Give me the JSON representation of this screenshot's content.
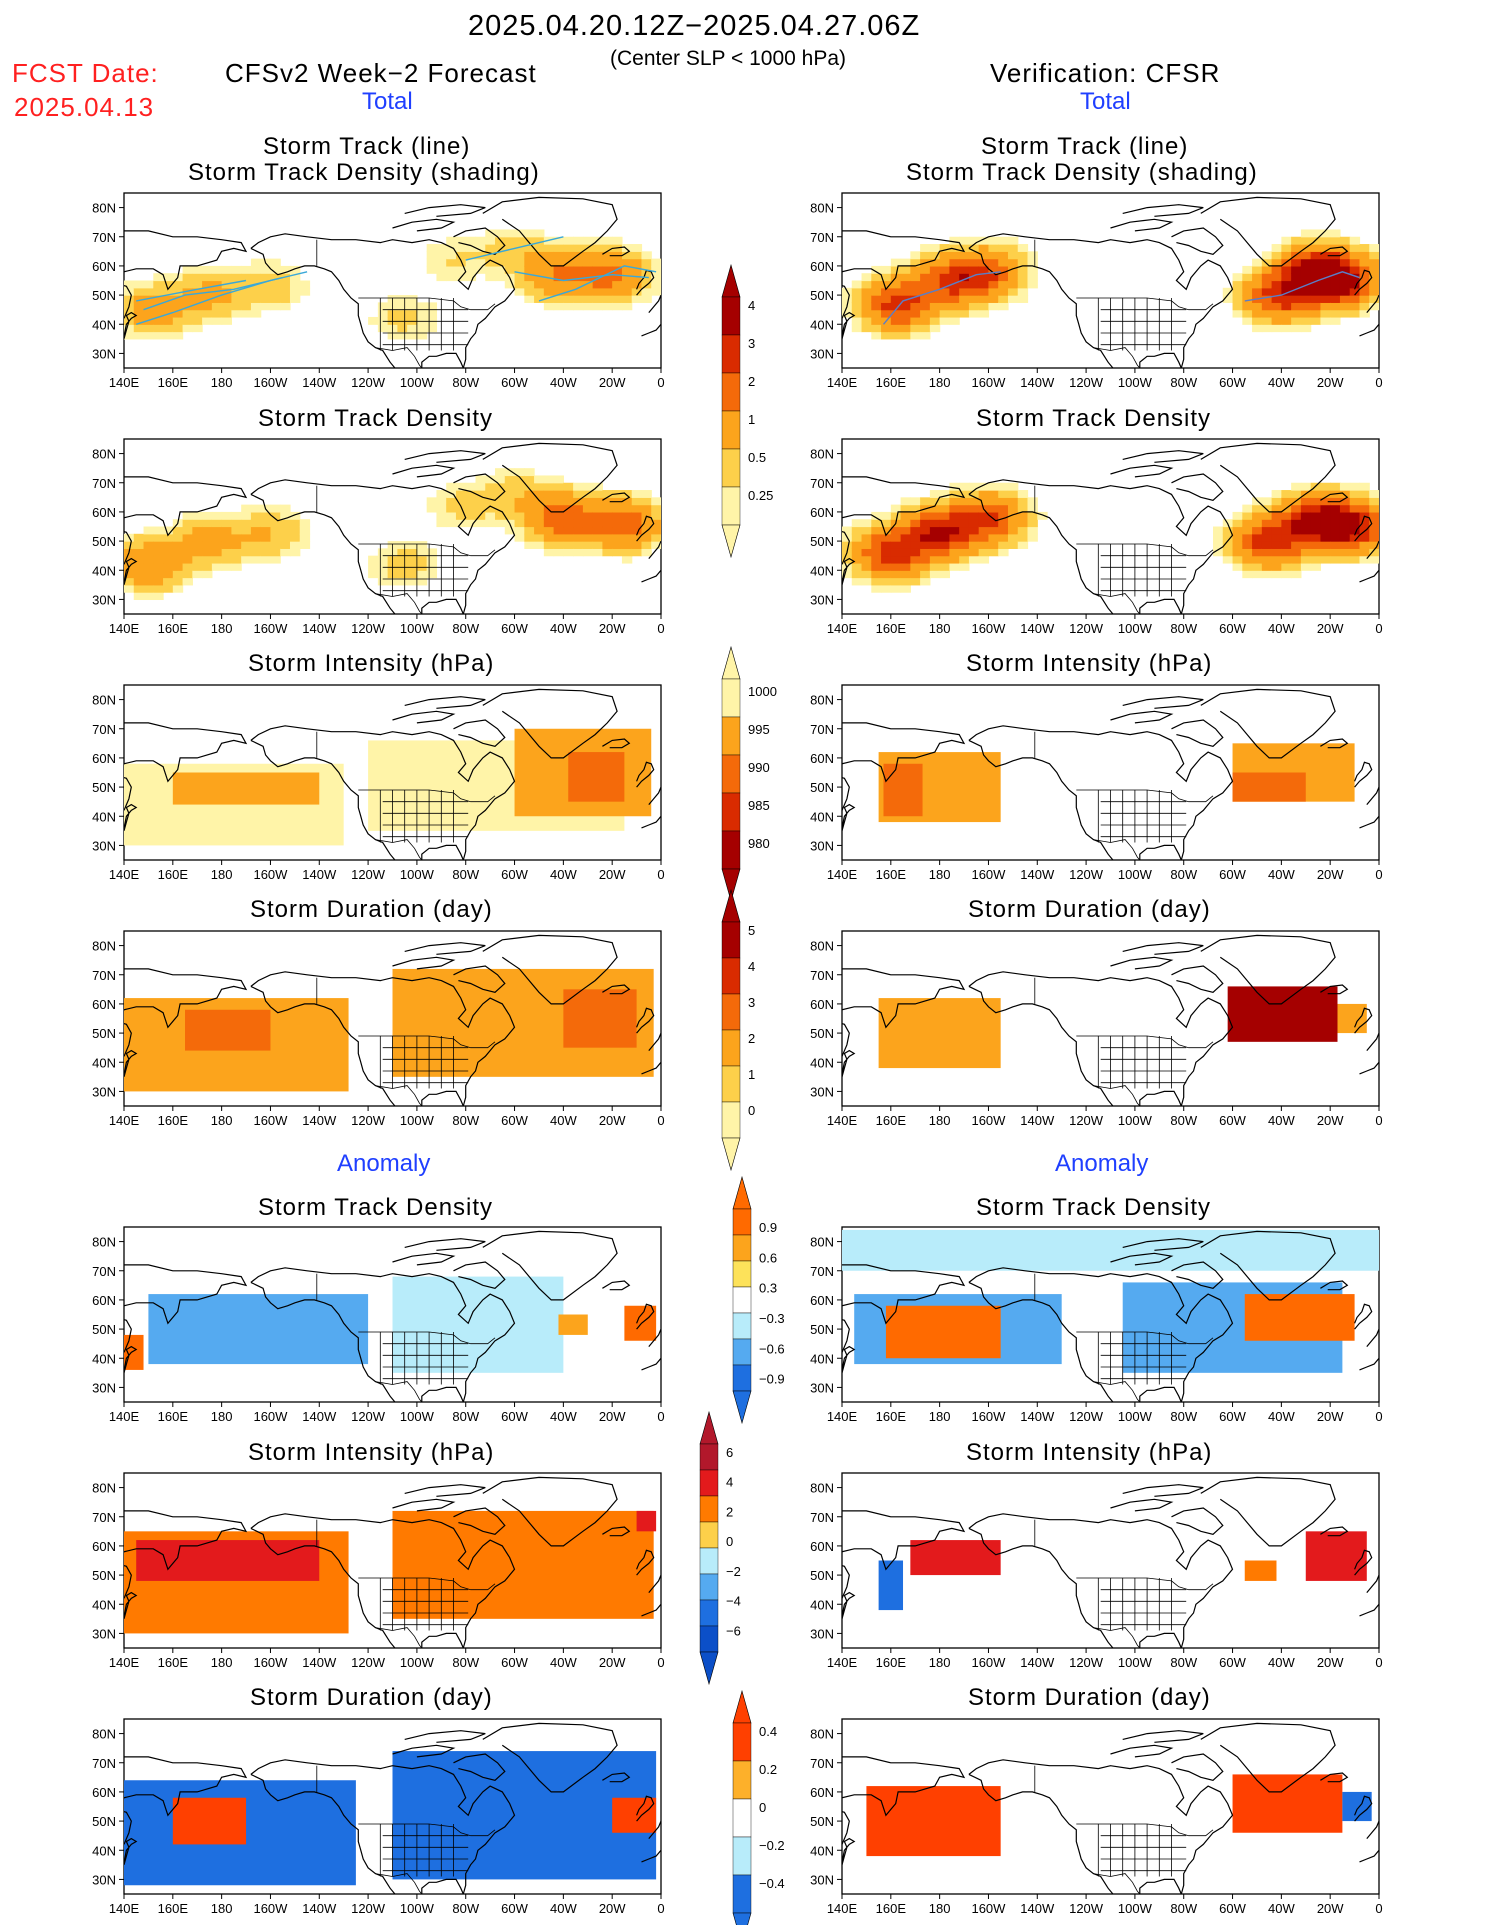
{
  "header": {
    "period": "2025.04.20.12Z−2025.04.27.06Z",
    "criterion": "(Center SLP < 1000 hPa)",
    "fcst_date_label": "FCST Date:",
    "fcst_date_value": "2025.04.13",
    "forecast_label": "CFSv2 Week−2 Forecast",
    "verification_label": "Verification: CFSR"
  },
  "sections": {
    "total_left": "Total",
    "total_right": "Total",
    "anomaly_left": "Anomaly",
    "anomaly_right": "Anomaly"
  },
  "panel_titles": {
    "track_line": "Storm Track (line)",
    "track_density_shading": "Storm Track Density (shading)",
    "track_density": "Storm Track Density",
    "intensity": "Storm Intensity (hPa)",
    "duration": "Storm Duration (day)"
  },
  "axes": {
    "lon_labels": [
      "140E",
      "160E",
      "180",
      "160W",
      "140W",
      "120W",
      "100W",
      "80W",
      "60W",
      "40W",
      "20W",
      "0"
    ],
    "lat_labels": [
      "80N",
      "70N",
      "60N",
      "50N",
      "40N",
      "30N"
    ],
    "lon_range": [
      140,
      360
    ],
    "lat_range": [
      25,
      85
    ]
  },
  "colorbars": {
    "total_density": {
      "labels": [
        "4",
        "3",
        "2",
        "1",
        "0.5",
        "0.25"
      ],
      "colors": [
        "#a50000",
        "#d92b00",
        "#f46a0a",
        "#fca41c",
        "#fdd04a",
        "#fff4a8"
      ]
    },
    "total_intensity": {
      "labels": [
        "1000",
        "995",
        "990",
        "985",
        "980"
      ],
      "colors": [
        "#fff4a8",
        "#fca41c",
        "#f46a0a",
        "#d92b00",
        "#a50000"
      ]
    },
    "total_duration": {
      "labels": [
        "5",
        "4",
        "3",
        "2",
        "1",
        "0"
      ],
      "colors": [
        "#a50000",
        "#d92b00",
        "#f46a0a",
        "#fca41c",
        "#fdd04a",
        "#fff4a8"
      ]
    },
    "anom_density": {
      "labels": [
        "0.9",
        "0.6",
        "0.3",
        "−0.3",
        "−0.6",
        "−0.9"
      ],
      "warm": [
        "#ff6a00",
        "#fca41c",
        "#fde25a"
      ],
      "cool": [
        "#b8ecfa",
        "#55aaf0",
        "#1e6fe0"
      ]
    },
    "anom_intensity": {
      "labels": [
        "6",
        "4",
        "2",
        "0",
        "−2",
        "−4",
        "−6"
      ],
      "warm": [
        "#e31a1c",
        "#ff7a00",
        "#fdd04a"
      ],
      "cool": [
        "#b8ecfa",
        "#55aaf0",
        "#1e6fe0"
      ]
    },
    "anom_duration": {
      "labels": [
        "0.4",
        "0.2",
        "0",
        "−0.2",
        "−0.4"
      ],
      "warm": [
        "#ff4000",
        "#fdb02a"
      ],
      "cool": [
        "#b8ecfa",
        "#1e6fe0"
      ]
    }
  },
  "chart_data": [
    {
      "type": "heatmap",
      "panel": "forecast-total-track",
      "title": "Storm Track (line) / Storm Track Density (shading)",
      "series": "CFSv2 Week−2 Forecast",
      "blobs": [
        {
          "lon": 152,
          "lat": 45,
          "value": 1.5
        },
        {
          "lon": 175,
          "lat": 50,
          "value": 1.2
        },
        {
          "lon": 200,
          "lat": 53,
          "value": 0.8
        },
        {
          "lon": 255,
          "lat": 42,
          "value": 0.6
        },
        {
          "lon": 275,
          "lat": 62,
          "value": 0.5
        },
        {
          "lon": 318,
          "lat": 57,
          "value": 2.0
        },
        {
          "lon": 340,
          "lat": 57,
          "value": 2.2
        },
        {
          "lon": 300,
          "lat": 65,
          "value": 0.7
        }
      ],
      "tracks": [
        [
          [
            145,
            40
          ],
          [
            160,
            44
          ],
          [
            180,
            50
          ],
          [
            200,
            55
          ],
          [
            215,
            58
          ]
        ],
        [
          [
            148,
            45
          ],
          [
            165,
            50
          ],
          [
            185,
            52
          ],
          [
            205,
            56
          ]
        ],
        [
          [
            145,
            48
          ],
          [
            170,
            52
          ],
          [
            190,
            55
          ]
        ],
        [
          [
            300,
            58
          ],
          [
            320,
            55
          ],
          [
            340,
            57
          ],
          [
            355,
            56
          ]
        ],
        [
          [
            310,
            48
          ],
          [
            325,
            52
          ],
          [
            345,
            60
          ],
          [
            358,
            58
          ]
        ],
        [
          [
            280,
            62
          ],
          [
            300,
            66
          ],
          [
            320,
            70
          ]
        ]
      ]
    },
    {
      "type": "heatmap",
      "panel": "verification-total-track",
      "title": "Storm Track (line) / Storm Track Density (shading)",
      "series": "Verification: CFSR",
      "blobs": [
        {
          "lon": 163,
          "lat": 47,
          "value": 3.5
        },
        {
          "lon": 185,
          "lat": 55,
          "value": 3.0
        },
        {
          "lon": 200,
          "lat": 58,
          "value": 2.5
        },
        {
          "lon": 320,
          "lat": 50,
          "value": 3.5
        },
        {
          "lon": 335,
          "lat": 58,
          "value": 4.5
        },
        {
          "lon": 345,
          "lat": 55,
          "value": 3.5
        }
      ],
      "tracks": [
        [
          [
            157,
            40
          ],
          [
            165,
            48
          ],
          [
            180,
            52
          ],
          [
            195,
            57
          ],
          [
            205,
            58
          ]
        ],
        [
          [
            305,
            48
          ],
          [
            320,
            50
          ],
          [
            335,
            55
          ],
          [
            345,
            58
          ],
          [
            352,
            56
          ]
        ]
      ]
    },
    {
      "type": "heatmap",
      "panel": "forecast-total-density",
      "title": "Storm Track Density",
      "series": "CFSv2 Week−2 Forecast",
      "blobs": [
        {
          "lon": 150,
          "lat": 42,
          "value": 2.0
        },
        {
          "lon": 175,
          "lat": 50,
          "value": 1.4
        },
        {
          "lon": 200,
          "lat": 53,
          "value": 1.0
        },
        {
          "lon": 255,
          "lat": 42,
          "value": 0.7
        },
        {
          "lon": 278,
          "lat": 62,
          "value": 0.6
        },
        {
          "lon": 320,
          "lat": 58,
          "value": 2.8
        },
        {
          "lon": 345,
          "lat": 56,
          "value": 2.6
        },
        {
          "lon": 300,
          "lat": 66,
          "value": 0.8
        }
      ]
    },
    {
      "type": "heatmap",
      "panel": "verification-total-density",
      "title": "Storm Track Density",
      "series": "Verification: CFSR",
      "blobs": [
        {
          "lon": 160,
          "lat": 46,
          "value": 3.5
        },
        {
          "lon": 180,
          "lat": 53,
          "value": 4.0
        },
        {
          "lon": 200,
          "lat": 58,
          "value": 3.0
        },
        {
          "lon": 315,
          "lat": 50,
          "value": 3.5
        },
        {
          "lon": 335,
          "lat": 57,
          "value": 4.5
        },
        {
          "lon": 350,
          "lat": 55,
          "value": 3.5
        }
      ]
    },
    {
      "type": "heatmap",
      "panel": "forecast-total-intensity",
      "title": "Storm Intensity (hPa)",
      "series": "CFSv2 Week−2 Forecast",
      "cells": [
        {
          "lon": [
            140,
            230
          ],
          "lat": [
            30,
            58
          ],
          "value": 998
        },
        {
          "lon": [
            160,
            220
          ],
          "lat": [
            44,
            55
          ],
          "value": 993
        },
        {
          "lon": [
            240,
            345
          ],
          "lat": [
            35,
            66
          ],
          "value": 997
        },
        {
          "lon": [
            300,
            356
          ],
          "lat": [
            40,
            70
          ],
          "value": 992
        },
        {
          "lon": [
            322,
            345
          ],
          "lat": [
            45,
            62
          ],
          "value": 989
        }
      ]
    },
    {
      "type": "heatmap",
      "panel": "verification-total-intensity",
      "title": "Storm Intensity (hPa)",
      "series": "Verification: CFSR",
      "cells": [
        {
          "lon": [
            155,
            205
          ],
          "lat": [
            38,
            62
          ],
          "value": 993
        },
        {
          "lon": [
            157,
            173
          ],
          "lat": [
            40,
            58
          ],
          "value": 986
        },
        {
          "lon": [
            300,
            350
          ],
          "lat": [
            45,
            65
          ],
          "value": 991
        },
        {
          "lon": [
            300,
            330
          ],
          "lat": [
            45,
            55
          ],
          "value": 988
        }
      ]
    },
    {
      "type": "heatmap",
      "panel": "forecast-total-duration",
      "title": "Storm Duration (day)",
      "series": "CFSv2 Week−2 Forecast",
      "cells": [
        {
          "lon": [
            140,
            232
          ],
          "lat": [
            30,
            62
          ],
          "value": 2.5
        },
        {
          "lon": [
            165,
            200
          ],
          "lat": [
            44,
            58
          ],
          "value": 3.3
        },
        {
          "lon": [
            250,
            357
          ],
          "lat": [
            35,
            72
          ],
          "value": 2.5
        },
        {
          "lon": [
            320,
            350
          ],
          "lat": [
            45,
            65
          ],
          "value": 3.2
        }
      ]
    },
    {
      "type": "heatmap",
      "panel": "verification-total-duration",
      "title": "Storm Duration (day)",
      "series": "Verification: CFSR",
      "cells": [
        {
          "lon": [
            155,
            205
          ],
          "lat": [
            38,
            62
          ],
          "value": 2.5
        },
        {
          "lon": [
            298,
            343
          ],
          "lat": [
            47,
            66
          ],
          "value": 5.3
        },
        {
          "lon": [
            343,
            355
          ],
          "lat": [
            50,
            60
          ],
          "value": 2.5
        }
      ]
    },
    {
      "type": "heatmap",
      "panel": "forecast-anomaly-density",
      "title": "Storm Track Density",
      "series": "CFSv2 Week−2 Forecast",
      "cells": [
        {
          "lon": [
            150,
            240
          ],
          "lat": [
            38,
            62
          ],
          "value": -0.6
        },
        {
          "lon": [
            250,
            320
          ],
          "lat": [
            35,
            68
          ],
          "value": -0.4
        },
        {
          "lon": [
            140,
            148
          ],
          "lat": [
            36,
            48
          ],
          "value": 0.9
        },
        {
          "lon": [
            345,
            358
          ],
          "lat": [
            46,
            58
          ],
          "value": 0.9
        },
        {
          "lon": [
            318,
            330
          ],
          "lat": [
            48,
            55
          ],
          "value": 0.8
        }
      ]
    },
    {
      "type": "heatmap",
      "panel": "verification-anomaly-density",
      "title": "Storm Track Density",
      "series": "Verification: CFSR",
      "cells": [
        {
          "lon": [
            140,
            360
          ],
          "lat": [
            70,
            84
          ],
          "value": -0.3
        },
        {
          "lon": [
            145,
            230
          ],
          "lat": [
            38,
            62
          ],
          "value": -0.7
        },
        {
          "lon": [
            158,
            205
          ],
          "lat": [
            40,
            58
          ],
          "value": 0.9
        },
        {
          "lon": [
            255,
            345
          ],
          "lat": [
            35,
            66
          ],
          "value": -0.7
        },
        {
          "lon": [
            305,
            350
          ],
          "lat": [
            46,
            62
          ],
          "value": 0.9
        }
      ]
    },
    {
      "type": "heatmap",
      "panel": "forecast-anomaly-intensity",
      "title": "Storm Intensity (hPa)",
      "series": "CFSv2 Week−2 Forecast",
      "cells": [
        {
          "lon": [
            140,
            232
          ],
          "lat": [
            30,
            65
          ],
          "value": 3.5
        },
        {
          "lon": [
            145,
            220
          ],
          "lat": [
            48,
            62
          ],
          "value": 5.5
        },
        {
          "lon": [
            250,
            357
          ],
          "lat": [
            35,
            72
          ],
          "value": 3.0
        },
        {
          "lon": [
            350,
            358
          ],
          "lat": [
            65,
            72
          ],
          "value": 6.5
        }
      ]
    },
    {
      "type": "heatmap",
      "panel": "verification-anomaly-intensity",
      "title": "Storm Intensity (hPa)",
      "series": "Verification: CFSR",
      "cells": [
        {
          "lon": [
            155,
            165
          ],
          "lat": [
            38,
            55
          ],
          "value": -4
        },
        {
          "lon": [
            168,
            205
          ],
          "lat": [
            50,
            62
          ],
          "value": 6.5
        },
        {
          "lon": [
            330,
            355
          ],
          "lat": [
            48,
            65
          ],
          "value": 5.5
        },
        {
          "lon": [
            305,
            318
          ],
          "lat": [
            48,
            55
          ],
          "value": 3
        }
      ]
    },
    {
      "type": "heatmap",
      "panel": "forecast-anomaly-duration",
      "title": "Storm Duration (day)",
      "series": "CFSv2 Week−2 Forecast",
      "cells": [
        {
          "lon": [
            140,
            235
          ],
          "lat": [
            28,
            64
          ],
          "value": -0.35
        },
        {
          "lon": [
            160,
            190
          ],
          "lat": [
            42,
            58
          ],
          "value": 0.3
        },
        {
          "lon": [
            250,
            358
          ],
          "lat": [
            30,
            74
          ],
          "value": -0.45
        },
        {
          "lon": [
            340,
            358
          ],
          "lat": [
            46,
            58
          ],
          "value": 0.2
        }
      ]
    },
    {
      "type": "heatmap",
      "panel": "verification-anomaly-duration",
      "title": "Storm Duration (day)",
      "series": "Verification: CFSR",
      "cells": [
        {
          "lon": [
            150,
            205
          ],
          "lat": [
            38,
            62
          ],
          "value": 0.45
        },
        {
          "lon": [
            300,
            345
          ],
          "lat": [
            46,
            66
          ],
          "value": 0.45
        },
        {
          "lon": [
            345,
            357
          ],
          "lat": [
            50,
            60
          ],
          "value": -0.45
        }
      ]
    }
  ]
}
